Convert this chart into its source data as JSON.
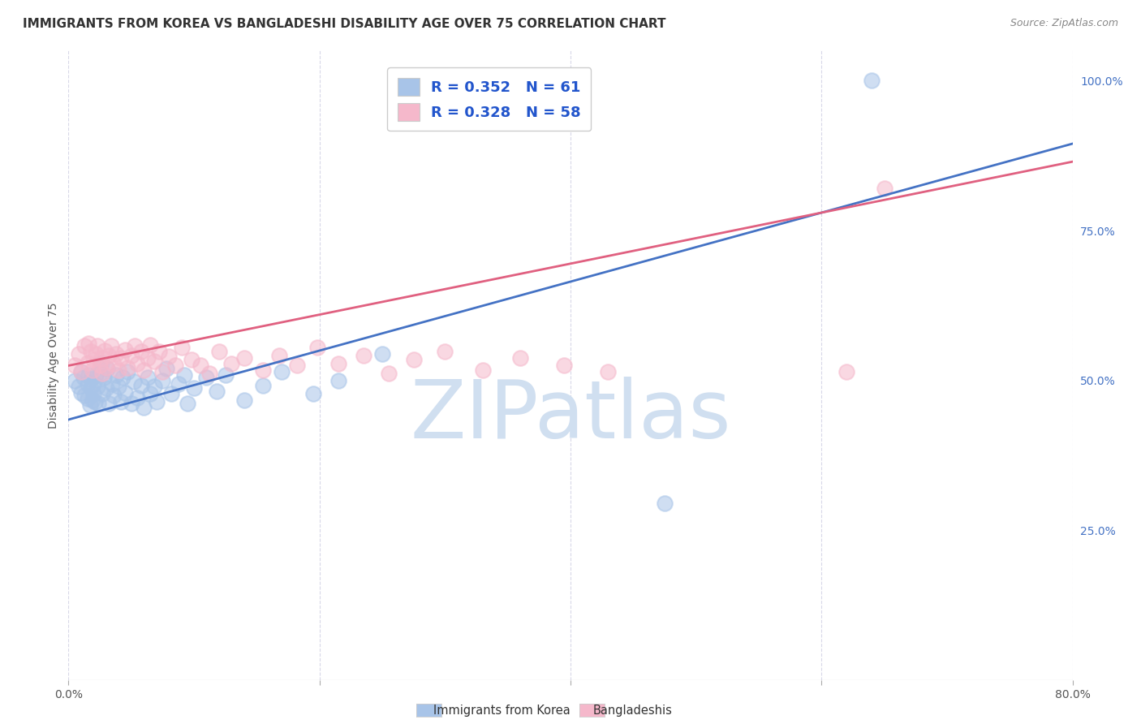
{
  "title": "IMMIGRANTS FROM KOREA VS BANGLADESHI DISABILITY AGE OVER 75 CORRELATION CHART",
  "source": "Source: ZipAtlas.com",
  "ylabel": "Disability Age Over 75",
  "xlim": [
    0.0,
    0.8
  ],
  "ylim": [
    0.0,
    1.05
  ],
  "legend_label_korea": "Immigrants from Korea",
  "legend_label_bangla": "Bangladeshis",
  "korea_color": "#a8c4e8",
  "bangla_color": "#f5b8cb",
  "korea_line_color": "#4472c4",
  "bangla_line_color": "#e06080",
  "watermark_color": "#d0dff0",
  "korea_R": 0.352,
  "korea_N": 61,
  "bangla_R": 0.328,
  "bangla_N": 58,
  "korea_intercept": 0.435,
  "korea_slope": 0.575,
  "bangla_intercept": 0.525,
  "bangla_slope": 0.425,
  "korea_x": [
    0.005,
    0.008,
    0.01,
    0.01,
    0.012,
    0.013,
    0.015,
    0.015,
    0.016,
    0.017,
    0.018,
    0.018,
    0.019,
    0.02,
    0.02,
    0.021,
    0.022,
    0.023,
    0.024,
    0.025,
    0.026,
    0.027,
    0.028,
    0.03,
    0.031,
    0.032,
    0.035,
    0.036,
    0.038,
    0.04,
    0.042,
    0.043,
    0.045,
    0.047,
    0.05,
    0.052,
    0.055,
    0.058,
    0.06,
    0.063,
    0.065,
    0.068,
    0.07,
    0.075,
    0.078,
    0.082,
    0.088,
    0.092,
    0.095,
    0.1,
    0.11,
    0.118,
    0.125,
    0.14,
    0.155,
    0.17,
    0.195,
    0.215,
    0.25,
    0.475,
    0.64
  ],
  "korea_y": [
    0.5,
    0.49,
    0.515,
    0.48,
    0.505,
    0.475,
    0.495,
    0.47,
    0.51,
    0.46,
    0.488,
    0.502,
    0.468,
    0.495,
    0.478,
    0.465,
    0.51,
    0.49,
    0.462,
    0.512,
    0.53,
    0.478,
    0.505,
    0.488,
    0.52,
    0.462,
    0.495,
    0.475,
    0.51,
    0.49,
    0.465,
    0.505,
    0.48,
    0.515,
    0.462,
    0.498,
    0.472,
    0.492,
    0.455,
    0.505,
    0.478,
    0.49,
    0.465,
    0.5,
    0.52,
    0.478,
    0.495,
    0.51,
    0.462,
    0.488,
    0.505,
    0.482,
    0.51,
    0.468,
    0.492,
    0.515,
    0.478,
    0.5,
    0.545,
    0.295,
    1.0
  ],
  "bangla_x": [
    0.005,
    0.008,
    0.01,
    0.013,
    0.015,
    0.016,
    0.018,
    0.019,
    0.02,
    0.022,
    0.023,
    0.025,
    0.026,
    0.027,
    0.029,
    0.03,
    0.032,
    0.034,
    0.036,
    0.038,
    0.04,
    0.042,
    0.045,
    0.047,
    0.05,
    0.053,
    0.055,
    0.058,
    0.06,
    0.063,
    0.065,
    0.068,
    0.072,
    0.075,
    0.08,
    0.085,
    0.09,
    0.098,
    0.105,
    0.112,
    0.12,
    0.13,
    0.14,
    0.155,
    0.168,
    0.182,
    0.198,
    0.215,
    0.235,
    0.255,
    0.275,
    0.3,
    0.33,
    0.36,
    0.395,
    0.43,
    0.62,
    0.65
  ],
  "bangla_y": [
    0.525,
    0.545,
    0.515,
    0.558,
    0.53,
    0.562,
    0.548,
    0.518,
    0.535,
    0.545,
    0.558,
    0.525,
    0.538,
    0.512,
    0.55,
    0.522,
    0.542,
    0.558,
    0.528,
    0.545,
    0.518,
    0.538,
    0.552,
    0.522,
    0.542,
    0.558,
    0.528,
    0.548,
    0.518,
    0.538,
    0.56,
    0.532,
    0.548,
    0.515,
    0.54,
    0.525,
    0.555,
    0.535,
    0.525,
    0.512,
    0.548,
    0.528,
    0.538,
    0.518,
    0.542,
    0.525,
    0.555,
    0.528,
    0.542,
    0.512,
    0.535,
    0.548,
    0.518,
    0.538,
    0.525,
    0.515,
    0.515,
    0.82
  ],
  "background_color": "#ffffff",
  "grid_color": "#d8d8e8",
  "title_fontsize": 11,
  "axis_label_fontsize": 10,
  "tick_fontsize": 10,
  "legend_text_color": "#2255cc"
}
